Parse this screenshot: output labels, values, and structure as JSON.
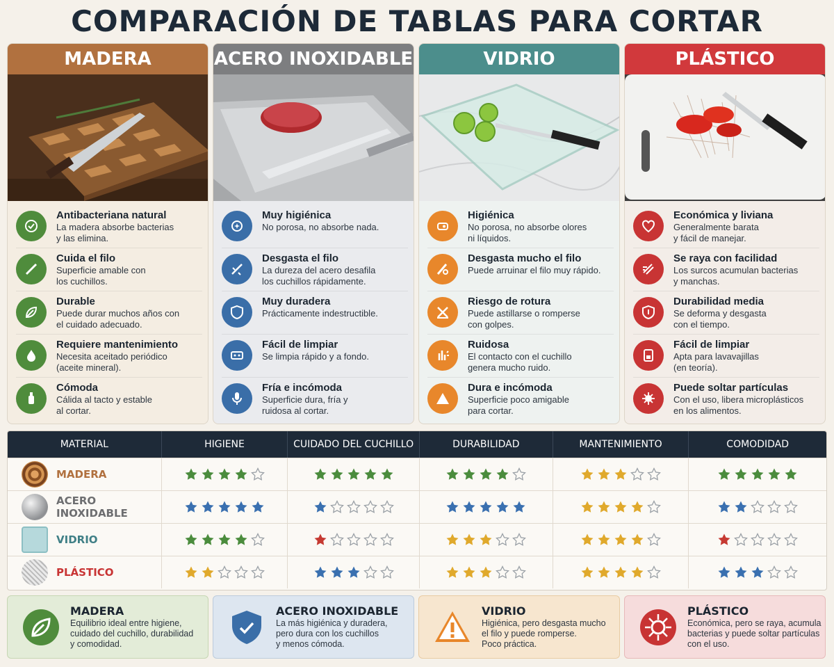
{
  "title": "COMPARACIÓN DE TABLAS PARA CORTAR",
  "colors": {
    "madera": "#b1713f",
    "acero": "#7d7e80",
    "vidrio": "#4c8e8c",
    "plastico": "#d1393c",
    "green": "#4f8c3c",
    "blue": "#3a6ea8",
    "orange": "#e8872b",
    "red": "#c83434",
    "star_green": "#4b8c3d",
    "star_blue": "#3a70b0",
    "star_gold": "#e0a92c",
    "star_red": "#c63a32"
  },
  "columns": [
    {
      "name": "MADERA",
      "items": [
        {
          "icon": "shield-check-icon",
          "title": "Antibacteriana natural",
          "desc": [
            "La madera absorbe bacterias",
            "y las elimina."
          ]
        },
        {
          "icon": "knife-icon",
          "title": "Cuida el filo",
          "desc": [
            "Superficie amable con",
            "los cuchillos."
          ]
        },
        {
          "icon": "leaf-icon",
          "title": "Durable",
          "desc": [
            "Puede durar muchos años con",
            "el cuidado adecuado."
          ]
        },
        {
          "icon": "oil-drop-icon",
          "title": "Requiere mantenimiento",
          "desc": [
            "Necesita aceitado periódico",
            "(aceite mineral)."
          ]
        },
        {
          "icon": "hand-icon",
          "title": "Cómoda",
          "desc": [
            "Cálida al tacto y estable",
            "al cortar."
          ]
        }
      ]
    },
    {
      "name": "ACERO INOXIDABLE",
      "items": [
        {
          "icon": "sparkle-icon",
          "title": "Muy higiénica",
          "desc": [
            "No porosa, no absorbe nada."
          ]
        },
        {
          "icon": "broken-blade-icon",
          "title": "Desgasta el filo",
          "desc": [
            "La dureza del acero desafila",
            "los cuchillos rápidamente."
          ]
        },
        {
          "icon": "shield-icon",
          "title": "Muy duradera",
          "desc": [
            "Prácticamente indestructible."
          ]
        },
        {
          "icon": "sponge-icon",
          "title": "Fácil de limpiar",
          "desc": [
            "Se limpia rápido y a fondo."
          ]
        },
        {
          "icon": "microphone-icon",
          "title": "Fría e incómoda",
          "desc": [
            "Superficie dura, fría y",
            "ruidosa al cortar."
          ]
        }
      ]
    },
    {
      "name": "VIDRIO",
      "items": [
        {
          "icon": "clean-icon",
          "title": "Higiénica",
          "desc": [
            "No porosa, no absorbe olores",
            "ni líquidos."
          ]
        },
        {
          "icon": "blade-damage-icon",
          "title": "Desgasta mucho el filo",
          "desc": [
            "Puede arruinar el filo muy rápido."
          ]
        },
        {
          "icon": "break-icon",
          "title": "Riesgo de rotura",
          "desc": [
            "Puede astillarse o romperse",
            "con golpes."
          ]
        },
        {
          "icon": "noise-icon",
          "title": "Ruidosa",
          "desc": [
            "El contacto con el cuchillo",
            "genera mucho ruido."
          ]
        },
        {
          "icon": "warning-icon",
          "title": "Dura e incómoda",
          "desc": [
            "Superficie poco amigable",
            "para cortar."
          ]
        }
      ]
    },
    {
      "name": "PLÁSTICO",
      "items": [
        {
          "icon": "heart-icon",
          "title": "Económica y liviana",
          "desc": [
            "Generalmente barata",
            "y fácil de manejar."
          ]
        },
        {
          "icon": "scratch-icon",
          "title": "Se raya con facilidad",
          "desc": [
            "Los surcos acumulan bacterias",
            "y manchas."
          ]
        },
        {
          "icon": "half-shield-icon",
          "title": "Durabilidad media",
          "desc": [
            "Se deforma y desgasta",
            "con el tiempo."
          ]
        },
        {
          "icon": "dishwasher-icon",
          "title": "Fácil de limpiar",
          "desc": [
            "Apta para lavavajillas",
            "(en teoría)."
          ]
        },
        {
          "icon": "germ-icon",
          "title": "Puede soltar partículas",
          "desc": [
            "Con el uso, libera microplásticos",
            "en los alimentos."
          ]
        }
      ]
    }
  ],
  "table": {
    "headers": [
      "MATERIAL",
      "HIGIENE",
      "CUIDADO DEL CUCHILLO",
      "DURABILIDAD",
      "MANTENIMIENTO",
      "COMODIDAD"
    ],
    "rows": [
      {
        "material": "MADERA",
        "ratings": [
          4,
          5,
          4,
          3,
          5
        ]
      },
      {
        "material": "ACERO INOXIDABLE",
        "ratings": [
          5,
          1,
          5,
          4,
          2
        ]
      },
      {
        "material": "VIDRIO",
        "ratings": [
          4,
          1,
          3,
          4,
          1
        ]
      },
      {
        "material": "PLÁSTICO",
        "ratings": [
          2,
          3,
          3,
          4,
          3
        ]
      }
    ],
    "max_rating": 5
  },
  "summaries": [
    {
      "title": "MADERA",
      "desc": [
        "Equilibrio ideal entre higiene,",
        "cuidado del cuchillo, durabilidad",
        "y comodidad."
      ]
    },
    {
      "title": "ACERO INOXIDABLE",
      "desc": [
        "La más higiénica y duradera,",
        "pero dura con los cuchillos",
        "y menos cómoda."
      ]
    },
    {
      "title": "VIDRIO",
      "desc": [
        "Higiénica, pero desgasta mucho",
        "el filo y puede romperse.",
        "Poco práctica."
      ]
    },
    {
      "title": "PLÁSTICO",
      "desc": [
        "Económica, pero se raya, acumula",
        "bacterias y puede soltar partículas",
        "con el uso."
      ]
    }
  ]
}
